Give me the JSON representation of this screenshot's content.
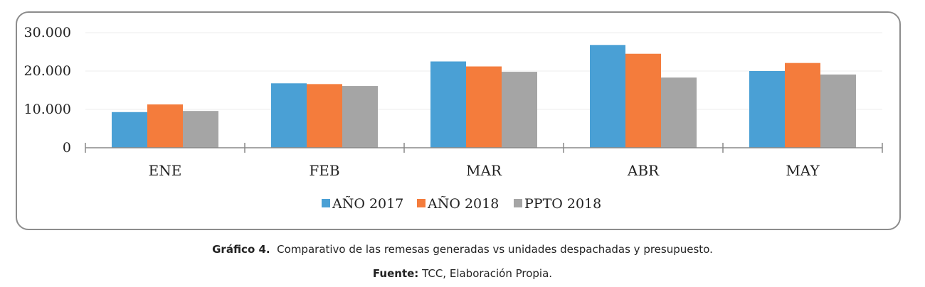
{
  "colors": {
    "series": [
      "#4aa0d5",
      "#f47c3c",
      "#a5a5a5"
    ],
    "grid": "#ececec",
    "axis": "#888888"
  },
  "chart_data": {
    "type": "bar",
    "categories": [
      "ENE",
      "FEB",
      "MAR",
      "ABR",
      "MAY"
    ],
    "series": [
      {
        "name": "AÑO 2017",
        "values": [
          9300,
          16800,
          22500,
          26800,
          20000
        ]
      },
      {
        "name": "AÑO 2018",
        "values": [
          11300,
          16600,
          21200,
          24500,
          22100
        ]
      },
      {
        "name": "PPTO 2018",
        "values": [
          9600,
          16100,
          19800,
          18300,
          19100
        ]
      }
    ],
    "yticks": [
      "0",
      "10.000",
      "20.000",
      "30.000"
    ],
    "ylim": [
      0,
      30000
    ],
    "grid": true,
    "legend_position": "bottom"
  },
  "caption": {
    "figure_label": "Gráfico 4.",
    "figure_text": "Comparativo de las remesas generadas vs unidades despachadas y presupuesto.",
    "source_label": "Fuente:",
    "source_text": "TCC, Elaboración Propia."
  }
}
